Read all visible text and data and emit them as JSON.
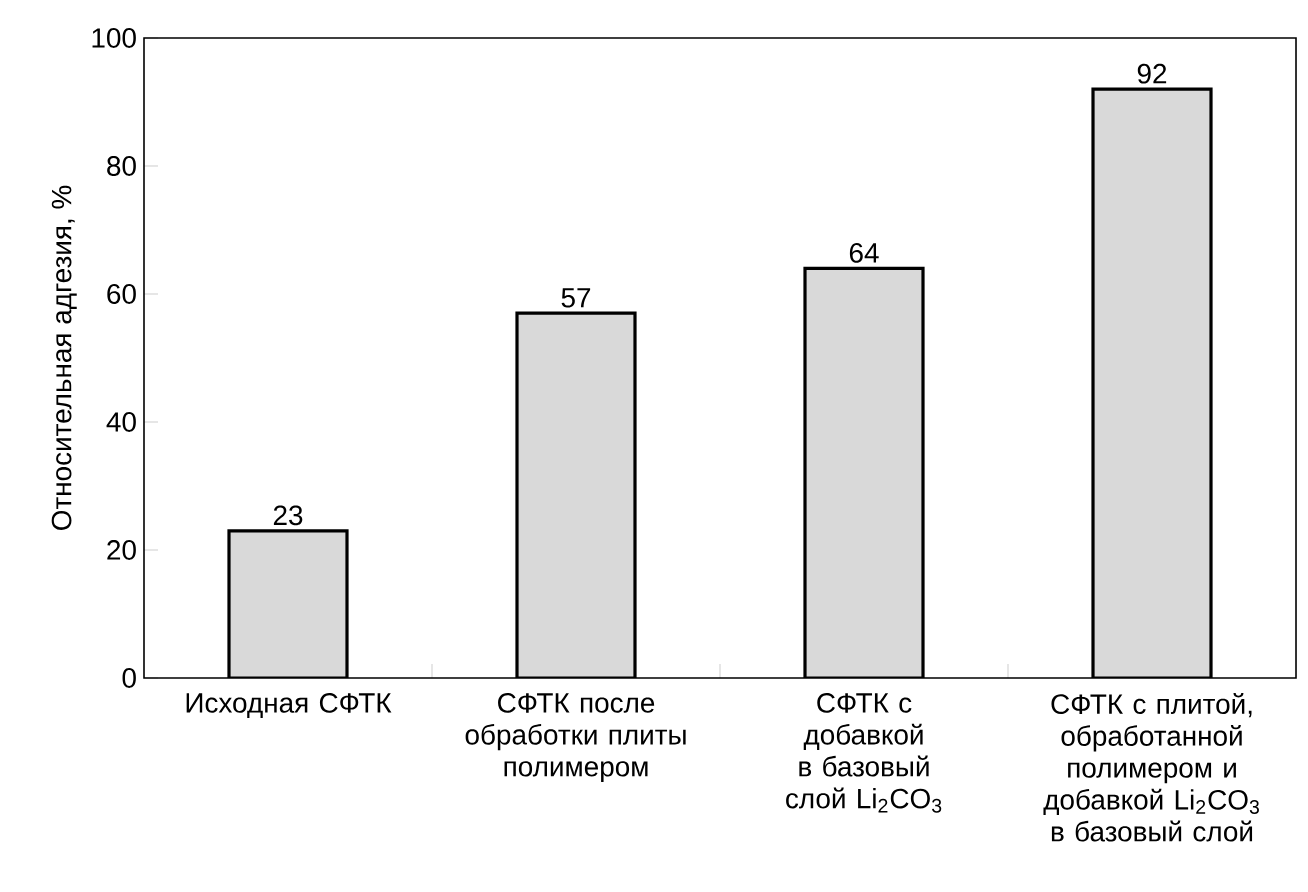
{
  "chart_data": {
    "type": "bar",
    "ylabel": "Относительная адгезия, %",
    "categories": [
      "Исходная СФТК",
      "СФТК после обработки плиты полимером",
      "СФТК с добавкой в базовый слой Li$_{2}$CO$_{3}$",
      "СФТК с плитой, обработанной полимером и добавкой Li$_{2}$CO$_{3}$ в базовый слой"
    ],
    "values": [
      23,
      57,
      64,
      92
    ],
    "color": "#d9d9d9",
    "ylim": [
      0,
      100
    ],
    "yticks": [
      0,
      20,
      40,
      60,
      80,
      100
    ],
    "data_labels": true
  }
}
